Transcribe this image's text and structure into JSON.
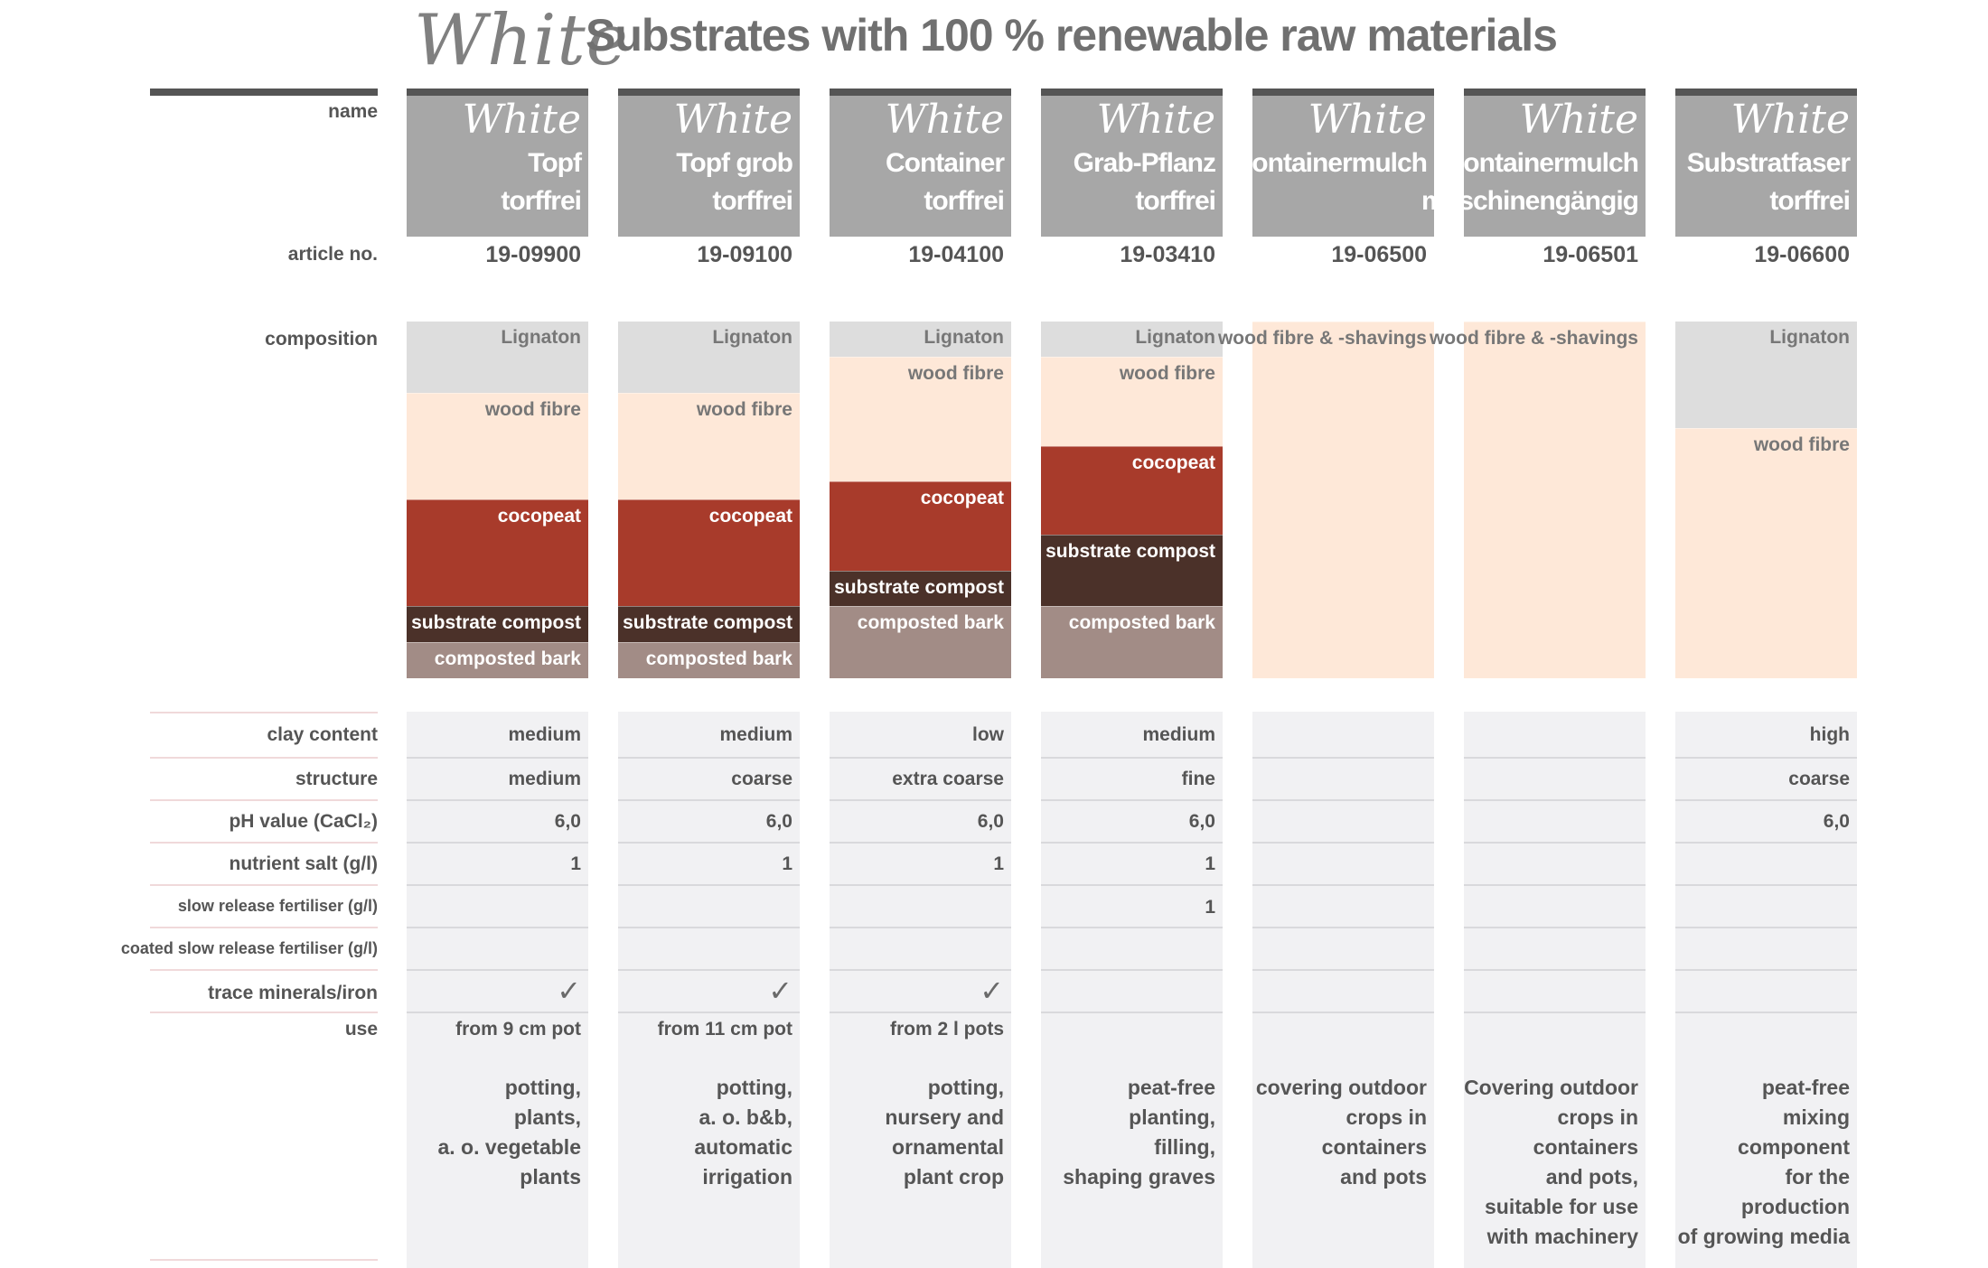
{
  "title": {
    "brand": "White",
    "text": "Substrates with 100 % renewable raw materials"
  },
  "row_labels": {
    "name": "name",
    "article": "article no.",
    "composition": "composition",
    "clay": "clay content",
    "structure": "structure",
    "ph": "pH value (CaCl₂)",
    "nutrient": "nutrient salt (g/l)",
    "slow": "slow release fertiliser (g/l)",
    "coated": "coated slow release fertiliser (g/l)",
    "trace": "trace minerals/iron",
    "use": "use"
  },
  "colors": {
    "Lignaton": "#dddddd",
    "wood fibre": "#fee8d8",
    "cocopeat": "#a83b2b",
    "substrate compost": "#4b3129",
    "composted bark": "#a28c86",
    "wood fibre & -shavings": "#fee8d8",
    "header": "#a7a7a7"
  },
  "products": [
    {
      "brand": "White",
      "line1": "Topf",
      "line2": "torffrei",
      "article": "19-09900",
      "composition": [
        {
          "label": "Lignaton",
          "fraction": 0.2
        },
        {
          "label": "wood fibre",
          "fraction": 0.3
        },
        {
          "label": "cocopeat",
          "fraction": 0.3
        },
        {
          "label": "substrate compost",
          "fraction": 0.1
        },
        {
          "label": "composted bark",
          "fraction": 0.1
        }
      ],
      "clay": "medium",
      "structure": "medium",
      "ph": "6,0",
      "nutrient": "1",
      "slow": "",
      "coated": "",
      "trace": "✓",
      "use_from": "from 9 cm pot",
      "use": "potting,\nplants,\na. o. vegetable\nplants"
    },
    {
      "brand": "White",
      "line1": "Topf grob",
      "line2": "torffrei",
      "article": "19-09100",
      "composition": [
        {
          "label": "Lignaton",
          "fraction": 0.2
        },
        {
          "label": "wood fibre",
          "fraction": 0.3
        },
        {
          "label": "cocopeat",
          "fraction": 0.3
        },
        {
          "label": "substrate compost",
          "fraction": 0.1
        },
        {
          "label": "composted bark",
          "fraction": 0.1
        }
      ],
      "clay": "medium",
      "structure": "coarse",
      "ph": "6,0",
      "nutrient": "1",
      "slow": "",
      "coated": "",
      "trace": "✓",
      "use_from": "from 11 cm pot",
      "use": "potting,\na. o. b&b,\nautomatic irrigation"
    },
    {
      "brand": "White",
      "line1": "Container",
      "line2": "torffrei",
      "article": "19-04100",
      "composition": [
        {
          "label": "Lignaton",
          "fraction": 0.1
        },
        {
          "label": "wood fibre",
          "fraction": 0.35
        },
        {
          "label": "cocopeat",
          "fraction": 0.25
        },
        {
          "label": "substrate compost",
          "fraction": 0.1
        },
        {
          "label": "composted bark",
          "fraction": 0.2
        }
      ],
      "clay": "low",
      "structure": "extra coarse",
      "ph": "6,0",
      "nutrient": "1",
      "slow": "",
      "coated": "",
      "trace": "✓",
      "use_from": "from 2 l pots",
      "use": "potting,\nnursery and\nornamental\nplant crop"
    },
    {
      "brand": "White",
      "line1": "Grab-Pflanz",
      "line2": "torffrei",
      "article": "19-03410",
      "composition": [
        {
          "label": "Lignaton",
          "fraction": 0.1
        },
        {
          "label": "wood fibre",
          "fraction": 0.25
        },
        {
          "label": "cocopeat",
          "fraction": 0.25
        },
        {
          "label": "substrate compost",
          "fraction": 0.2
        },
        {
          "label": "composted bark",
          "fraction": 0.2
        }
      ],
      "clay": "medium",
      "structure": "fine",
      "ph": "6,0",
      "nutrient": "1",
      "slow": "1",
      "coated": "",
      "trace": "",
      "use_from": "",
      "use": "peat-free planting,\nfilling,\nshaping graves"
    },
    {
      "brand": "White",
      "line1": "Containermulch",
      "line2": "",
      "article": "19-06500",
      "composition": [
        {
          "label": "wood fibre & -shavings",
          "fraction": 1.0
        }
      ],
      "clay": "",
      "structure": "",
      "ph": "",
      "nutrient": "",
      "slow": "",
      "coated": "",
      "trace": "",
      "use_from": "",
      "use": "covering outdoor\ncrops in containers\nand pots"
    },
    {
      "brand": "White",
      "line1": "Containermulch",
      "line2": "maschinengängig",
      "article": "19-06501",
      "composition": [
        {
          "label": "wood fibre & -shavings",
          "fraction": 1.0
        }
      ],
      "clay": "",
      "structure": "",
      "ph": "",
      "nutrient": "",
      "slow": "",
      "coated": "",
      "trace": "",
      "use_from": "",
      "use": "Covering outdoor\ncrops in containers\nand pots,\nsuitable for use\nwith machinery"
    },
    {
      "brand": "White",
      "line1": "Substratfaser",
      "line2": "torffrei",
      "article": "19-06600",
      "composition": [
        {
          "label": "Lignaton",
          "fraction": 0.3
        },
        {
          "label": "wood fibre",
          "fraction": 0.7
        }
      ],
      "clay": "high",
      "structure": "coarse",
      "ph": "6,0",
      "nutrient": "",
      "slow": "",
      "coated": "",
      "trace": "",
      "use_from": "",
      "use": "peat-free\nmixing component\nfor the production\nof growing media"
    }
  ]
}
